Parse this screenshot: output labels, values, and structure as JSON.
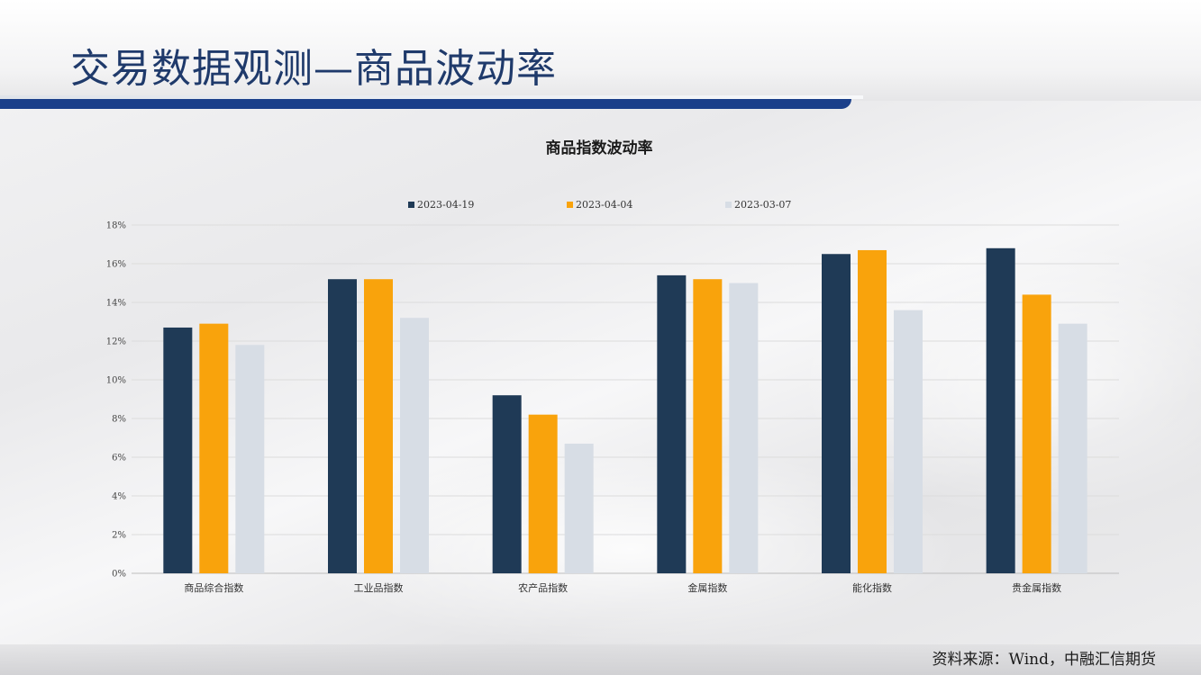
{
  "page": {
    "title": "交易数据观测—商品波动率",
    "source": "资料来源：Wind，中融汇信期货"
  },
  "colors": {
    "title_text": "#1f3a6b",
    "title_bar": "#1a3f8a",
    "series": [
      "#1f3a56",
      "#f9a30c",
      "#d7dde5"
    ]
  },
  "chart_data": {
    "type": "bar",
    "title": "商品指数波动率",
    "xlabel": "",
    "ylabel": "",
    "categories": [
      "商品综合指数",
      "工业品指数",
      "农产品指数",
      "金属指数",
      "能化指数",
      "贵金属指数"
    ],
    "series": [
      {
        "name": "2023-04-19",
        "values": [
          12.7,
          15.2,
          9.2,
          15.4,
          16.5,
          16.8
        ]
      },
      {
        "name": "2023-04-04",
        "values": [
          12.9,
          15.2,
          8.2,
          15.2,
          16.7,
          14.4
        ]
      },
      {
        "name": "2023-03-07",
        "values": [
          11.8,
          13.2,
          6.7,
          15.0,
          13.6,
          12.9
        ]
      }
    ],
    "ylim": [
      0,
      18
    ],
    "yticks": [
      "0%",
      "2%",
      "4%",
      "6%",
      "8%",
      "10%",
      "12%",
      "14%",
      "16%",
      "18%"
    ],
    "grid": true,
    "legend": "top-center"
  }
}
